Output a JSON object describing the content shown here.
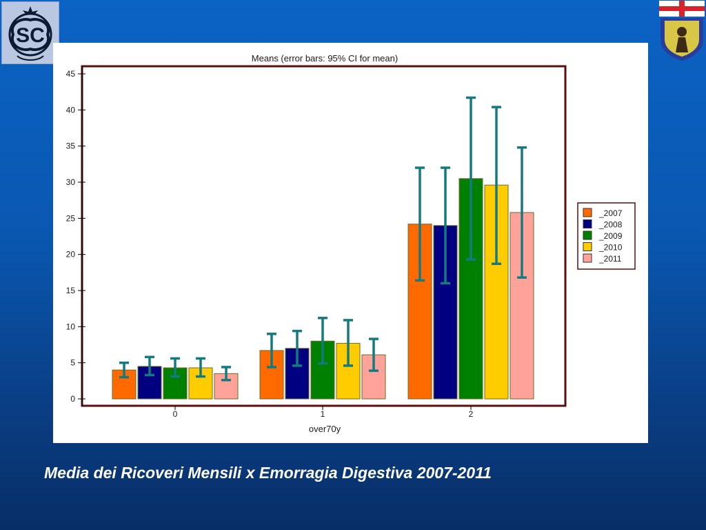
{
  "slide": {
    "caption": "Media dei Ricoveri Mensili x Emorragia Digestiva 2007-2011",
    "logo_left_text": "SC",
    "logo_right_text": ""
  },
  "chart_data": {
    "type": "bar",
    "title": "Means  (error bars: 95% CI for mean)",
    "xlabel": "over70y",
    "ylabel": "",
    "categories": [
      "0",
      "1",
      "2"
    ],
    "ylim": [
      0,
      45
    ],
    "yticks": [
      "0",
      "5",
      "10",
      "15",
      "20",
      "25",
      "30",
      "35",
      "40",
      "45"
    ],
    "grid": false,
    "legend_position": "right",
    "series": [
      {
        "name": "_2007",
        "color": "#ff6a00",
        "values": [
          4.0,
          6.7,
          24.2
        ],
        "ci_low": [
          3.0,
          4.4,
          16.4
        ],
        "ci_high": [
          5.0,
          9.0,
          32.0
        ]
      },
      {
        "name": "_2008",
        "color": "#000080",
        "values": [
          4.5,
          7.0,
          24.0
        ],
        "ci_low": [
          3.3,
          4.6,
          16.0
        ],
        "ci_high": [
          5.8,
          9.4,
          32.0
        ]
      },
      {
        "name": "_2009",
        "color": "#008000",
        "values": [
          4.3,
          8.0,
          30.5
        ],
        "ci_low": [
          3.1,
          4.9,
          19.3
        ],
        "ci_high": [
          5.6,
          11.2,
          41.7
        ]
      },
      {
        "name": "_2010",
        "color": "#ffcc00",
        "values": [
          4.3,
          7.7,
          29.6
        ],
        "ci_low": [
          3.1,
          4.6,
          18.7
        ],
        "ci_high": [
          5.6,
          10.9,
          40.4
        ]
      },
      {
        "name": "_2011",
        "color": "#ffa39a",
        "values": [
          3.5,
          6.1,
          25.8
        ],
        "ci_low": [
          2.6,
          3.9,
          16.8
        ],
        "ci_high": [
          4.4,
          8.3,
          34.8
        ]
      }
    ],
    "errorbar_color": "#147a80",
    "frame_color": "#5a0f0f"
  }
}
